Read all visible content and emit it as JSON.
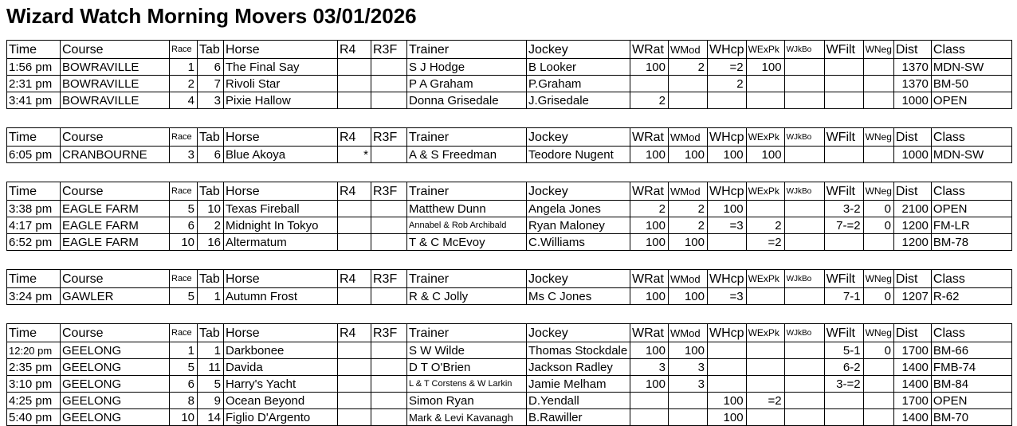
{
  "title": "Wizard Watch Morning Movers 03/01/2026",
  "columns": [
    {
      "key": "time",
      "label": "Time"
    },
    {
      "key": "course",
      "label": "Course"
    },
    {
      "key": "race",
      "label": "Race"
    },
    {
      "key": "tab",
      "label": "Tab"
    },
    {
      "key": "horse",
      "label": "Horse"
    },
    {
      "key": "r4",
      "label": "R4"
    },
    {
      "key": "r3f",
      "label": "R3F"
    },
    {
      "key": "trainer",
      "label": "Trainer"
    },
    {
      "key": "jockey",
      "label": "Jockey"
    },
    {
      "key": "wrat",
      "label": "WRat"
    },
    {
      "key": "wmod",
      "label": "WMod"
    },
    {
      "key": "whcp",
      "label": "WHcp"
    },
    {
      "key": "wexpk",
      "label": "WExPk"
    },
    {
      "key": "wjkbo",
      "label": "WJkBo"
    },
    {
      "key": "wfilt",
      "label": "WFilt"
    },
    {
      "key": "wneg",
      "label": "WNeg"
    },
    {
      "key": "dist",
      "label": "Dist"
    },
    {
      "key": "class",
      "label": "Class"
    }
  ],
  "tables": [
    {
      "course": "BOWRAVILLE",
      "rows": [
        {
          "cells": {
            "time": "1:56 pm",
            "course": "BOWRAVILLE",
            "race": "1",
            "tab": "6",
            "horse": "The Final Say",
            "trainer": "S J Hodge",
            "jockey": "B Looker",
            "wrat": "100",
            "wmod": "2",
            "whcp": "=2",
            "wexpk": "100",
            "dist": "1370",
            "class": "MDN-SW"
          }
        },
        {
          "cells": {
            "time": "2:31 pm",
            "course": "BOWRAVILLE",
            "race": "2",
            "tab": "7",
            "horse": "Rivoli Star",
            "trainer": "P A Graham",
            "jockey": "P.Graham",
            "whcp": "2",
            "dist": "1370",
            "class": "BM-50"
          }
        },
        {
          "cells": {
            "time": "3:41 pm",
            "course": "BOWRAVILLE",
            "race": "4",
            "tab": "3",
            "horse": "Pixie Hallow",
            "trainer": "Donna Grisedale",
            "jockey": "J.Grisedale",
            "wrat": "2",
            "dist": "1000",
            "class": "OPEN"
          }
        }
      ]
    },
    {
      "course": "CRANBOURNE",
      "rows": [
        {
          "cells": {
            "time": "6:05 pm",
            "course": "CRANBOURNE",
            "race": "3",
            "tab": "6",
            "horse": "Blue Akoya",
            "r4": "*",
            "trainer": "A & S Freedman",
            "jockey": "Teodore Nugent",
            "wrat": "100",
            "wmod": "100",
            "whcp": "100",
            "wexpk": "100",
            "dist": "1000",
            "class": "MDN-SW"
          }
        }
      ]
    },
    {
      "course": "EAGLE FARM",
      "rows": [
        {
          "cells": {
            "time": "3:38 pm",
            "course": "EAGLE FARM",
            "race": "5",
            "tab": "10",
            "horse": "Texas Fireball",
            "trainer": "Matthew Dunn",
            "jockey": "Angela Jones",
            "wrat": "2",
            "wmod": "2",
            "whcp": "100",
            "wfilt": "3-2",
            "wneg": "0",
            "dist": "2100",
            "class": "OPEN"
          }
        },
        {
          "cells": {
            "time": "4:17 pm",
            "course": "EAGLE FARM",
            "race": "6",
            "tab": "2",
            "horse": "Midnight In Tokyo",
            "trainer": "Annabel & Rob Archibald",
            "jockey": "Ryan Maloney",
            "wrat": "100",
            "wmod": "2",
            "whcp": "=3",
            "wexpk": "2",
            "wfilt": "7-=2",
            "wneg": "0",
            "dist": "1200",
            "class": "FM-LR"
          },
          "shrink": {
            "trainer": "sm"
          }
        },
        {
          "cells": {
            "time": "6:52 pm",
            "course": "EAGLE FARM",
            "race": "10",
            "tab": "16",
            "horse": "Altermatum",
            "trainer": "T & C McEvoy",
            "jockey": "C.Williams",
            "wrat": "100",
            "wmod": "100",
            "wexpk": "=2",
            "dist": "1200",
            "class": "BM-78"
          }
        }
      ]
    },
    {
      "course": "GAWLER",
      "rows": [
        {
          "cells": {
            "time": "3:24 pm",
            "course": "GAWLER",
            "race": "5",
            "tab": "1",
            "horse": "Autumn Frost",
            "trainer": "R & C Jolly",
            "jockey": "Ms C Jones",
            "wrat": "100",
            "wmod": "100",
            "whcp": "=3",
            "wfilt": "7-1",
            "wneg": "0",
            "dist": "1207",
            "class": "R-62"
          }
        }
      ]
    },
    {
      "course": "GEELONG",
      "rows": [
        {
          "cells": {
            "time": "12:20 pm",
            "course": "GEELONG",
            "race": "1",
            "tab": "1",
            "horse": "Darkbonee",
            "trainer": "S W Wilde",
            "jockey": "Thomas Stockdale",
            "wrat": "100",
            "wmod": "100",
            "wfilt": "5-1",
            "wneg": "0",
            "dist": "1700",
            "class": "BM-66"
          },
          "shrink": {
            "time": "md"
          }
        },
        {
          "cells": {
            "time": "2:35 pm",
            "course": "GEELONG",
            "race": "5",
            "tab": "11",
            "horse": "Davida",
            "trainer": "D T O'Brien",
            "jockey": "Jackson Radley",
            "wrat": "3",
            "wmod": "3",
            "wfilt": "6-2",
            "dist": "1400",
            "class": "FMB-74"
          }
        },
        {
          "cells": {
            "time": "3:10 pm",
            "course": "GEELONG",
            "race": "6",
            "tab": "5",
            "horse": "Harry's Yacht",
            "trainer": "L & T Corstens & W Larkin",
            "jockey": "Jamie Melham",
            "wrat": "100",
            "wmod": "3",
            "wfilt": "3-=2",
            "dist": "1400",
            "class": "BM-84"
          },
          "shrink": {
            "trainer": "sm"
          }
        },
        {
          "cells": {
            "time": "4:25 pm",
            "course": "GEELONG",
            "race": "8",
            "tab": "9",
            "horse": "Ocean Beyond",
            "trainer": "Simon Ryan",
            "jockey": "D.Yendall",
            "whcp": "100",
            "wexpk": "=2",
            "dist": "1700",
            "class": "OPEN"
          }
        },
        {
          "cells": {
            "time": "5:40 pm",
            "course": "GEELONG",
            "race": "10",
            "tab": "14",
            "horse": "Figlio D'Argento",
            "trainer": "Mark & Levi Kavanagh",
            "jockey": "B.Rawiller",
            "whcp": "100",
            "dist": "1400",
            "class": "BM-70"
          },
          "shrink": {
            "trainer": "md"
          }
        }
      ]
    }
  ]
}
